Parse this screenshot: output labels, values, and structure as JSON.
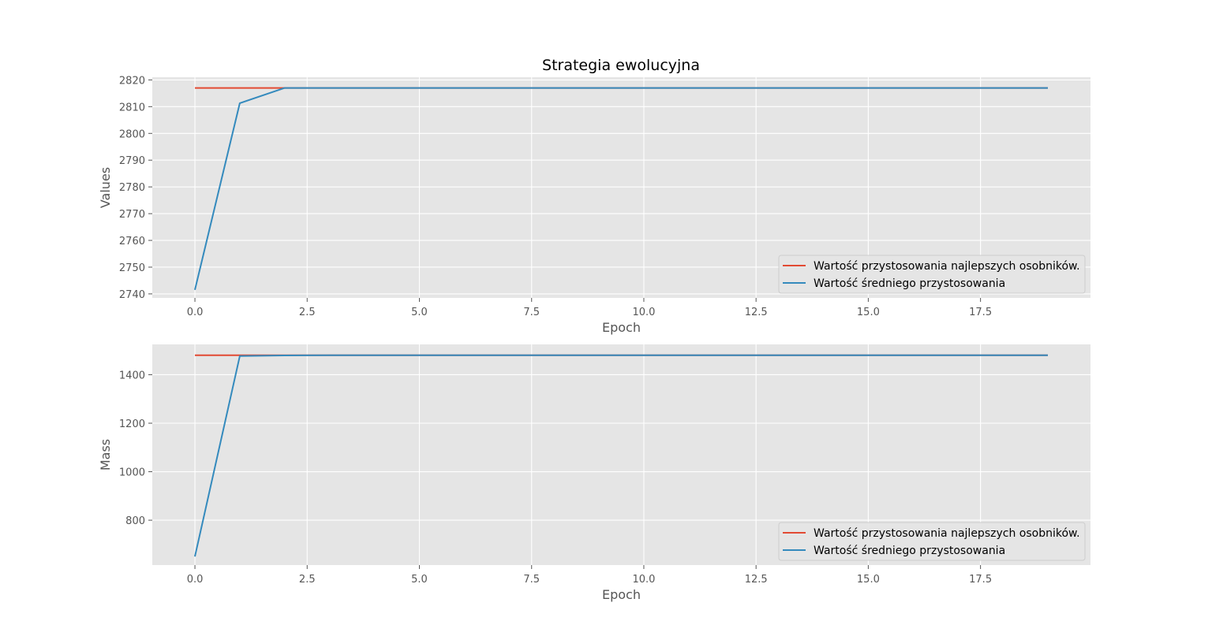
{
  "colors": {
    "figure_bg": "#ffffff",
    "axes_bg": "#e5e5e5",
    "grid": "#ffffff",
    "tick_text": "#555555",
    "title_text": "#000000"
  },
  "chart_data": [
    {
      "type": "line",
      "title": "Strategia ewolucyjna",
      "xlabel": "Epoch",
      "ylabel": "Values",
      "xlim": [
        -0.95,
        19.95
      ],
      "ylim": [
        2738.5,
        2821
      ],
      "xticks": [
        0.0,
        2.5,
        5.0,
        7.5,
        10.0,
        12.5,
        15.0,
        17.5
      ],
      "xtick_labels": [
        "0.0",
        "2.5",
        "5.0",
        "7.5",
        "10.0",
        "12.5",
        "15.0",
        "17.5"
      ],
      "yticks": [
        2740,
        2750,
        2760,
        2770,
        2780,
        2790,
        2800,
        2810,
        2820
      ],
      "ytick_labels": [
        "2740",
        "2750",
        "2760",
        "2770",
        "2780",
        "2790",
        "2800",
        "2810",
        "2820"
      ],
      "grid": true,
      "legend_position": "lower-right",
      "x": [
        0,
        1,
        2,
        3,
        4,
        5,
        6,
        7,
        8,
        9,
        10,
        11,
        12,
        13,
        14,
        15,
        16,
        17,
        18,
        19
      ],
      "series": [
        {
          "name": "Wartość przystosowania najlepszych osobników.",
          "color": "#e24a33",
          "values": [
            2817,
            2817,
            2817,
            2817,
            2817,
            2817,
            2817,
            2817,
            2817,
            2817,
            2817,
            2817,
            2817,
            2817,
            2817,
            2817,
            2817,
            2817,
            2817,
            2817
          ]
        },
        {
          "name": "Wartość średniego przystosowania",
          "color": "#348abd",
          "values": [
            2741.5,
            2811.3,
            2817,
            2817,
            2817,
            2817,
            2817,
            2817,
            2817,
            2817,
            2817,
            2817,
            2817,
            2817,
            2817,
            2817,
            2817,
            2817,
            2817,
            2817
          ]
        }
      ]
    },
    {
      "type": "line",
      "title": "",
      "xlabel": "Epoch",
      "ylabel": "Mass",
      "xlim": [
        -0.95,
        19.95
      ],
      "ylim": [
        615,
        1525
      ],
      "xticks": [
        0.0,
        2.5,
        5.0,
        7.5,
        10.0,
        12.5,
        15.0,
        17.5
      ],
      "xtick_labels": [
        "0.0",
        "2.5",
        "5.0",
        "7.5",
        "10.0",
        "12.5",
        "15.0",
        "17.5"
      ],
      "yticks": [
        800,
        1000,
        1200,
        1400
      ],
      "ytick_labels": [
        "800",
        "1000",
        "1200",
        "1400"
      ],
      "grid": true,
      "legend_position": "lower-right",
      "x": [
        0,
        1,
        2,
        3,
        4,
        5,
        6,
        7,
        8,
        9,
        10,
        11,
        12,
        13,
        14,
        15,
        16,
        17,
        18,
        19
      ],
      "series": [
        {
          "name": "Wartość przystosowania najlepszych osobników.",
          "color": "#e24a33",
          "values": [
            1480,
            1480,
            1480,
            1480,
            1480,
            1480,
            1480,
            1480,
            1480,
            1480,
            1480,
            1480,
            1480,
            1480,
            1480,
            1480,
            1480,
            1480,
            1480,
            1480
          ]
        },
        {
          "name": "Wartość średniego przystosowania",
          "color": "#348abd",
          "values": [
            650,
            1477,
            1479.5,
            1480,
            1480,
            1480,
            1480,
            1480,
            1480,
            1480,
            1480,
            1480,
            1480,
            1480,
            1480,
            1480,
            1480,
            1480,
            1480,
            1480
          ]
        }
      ]
    }
  ]
}
